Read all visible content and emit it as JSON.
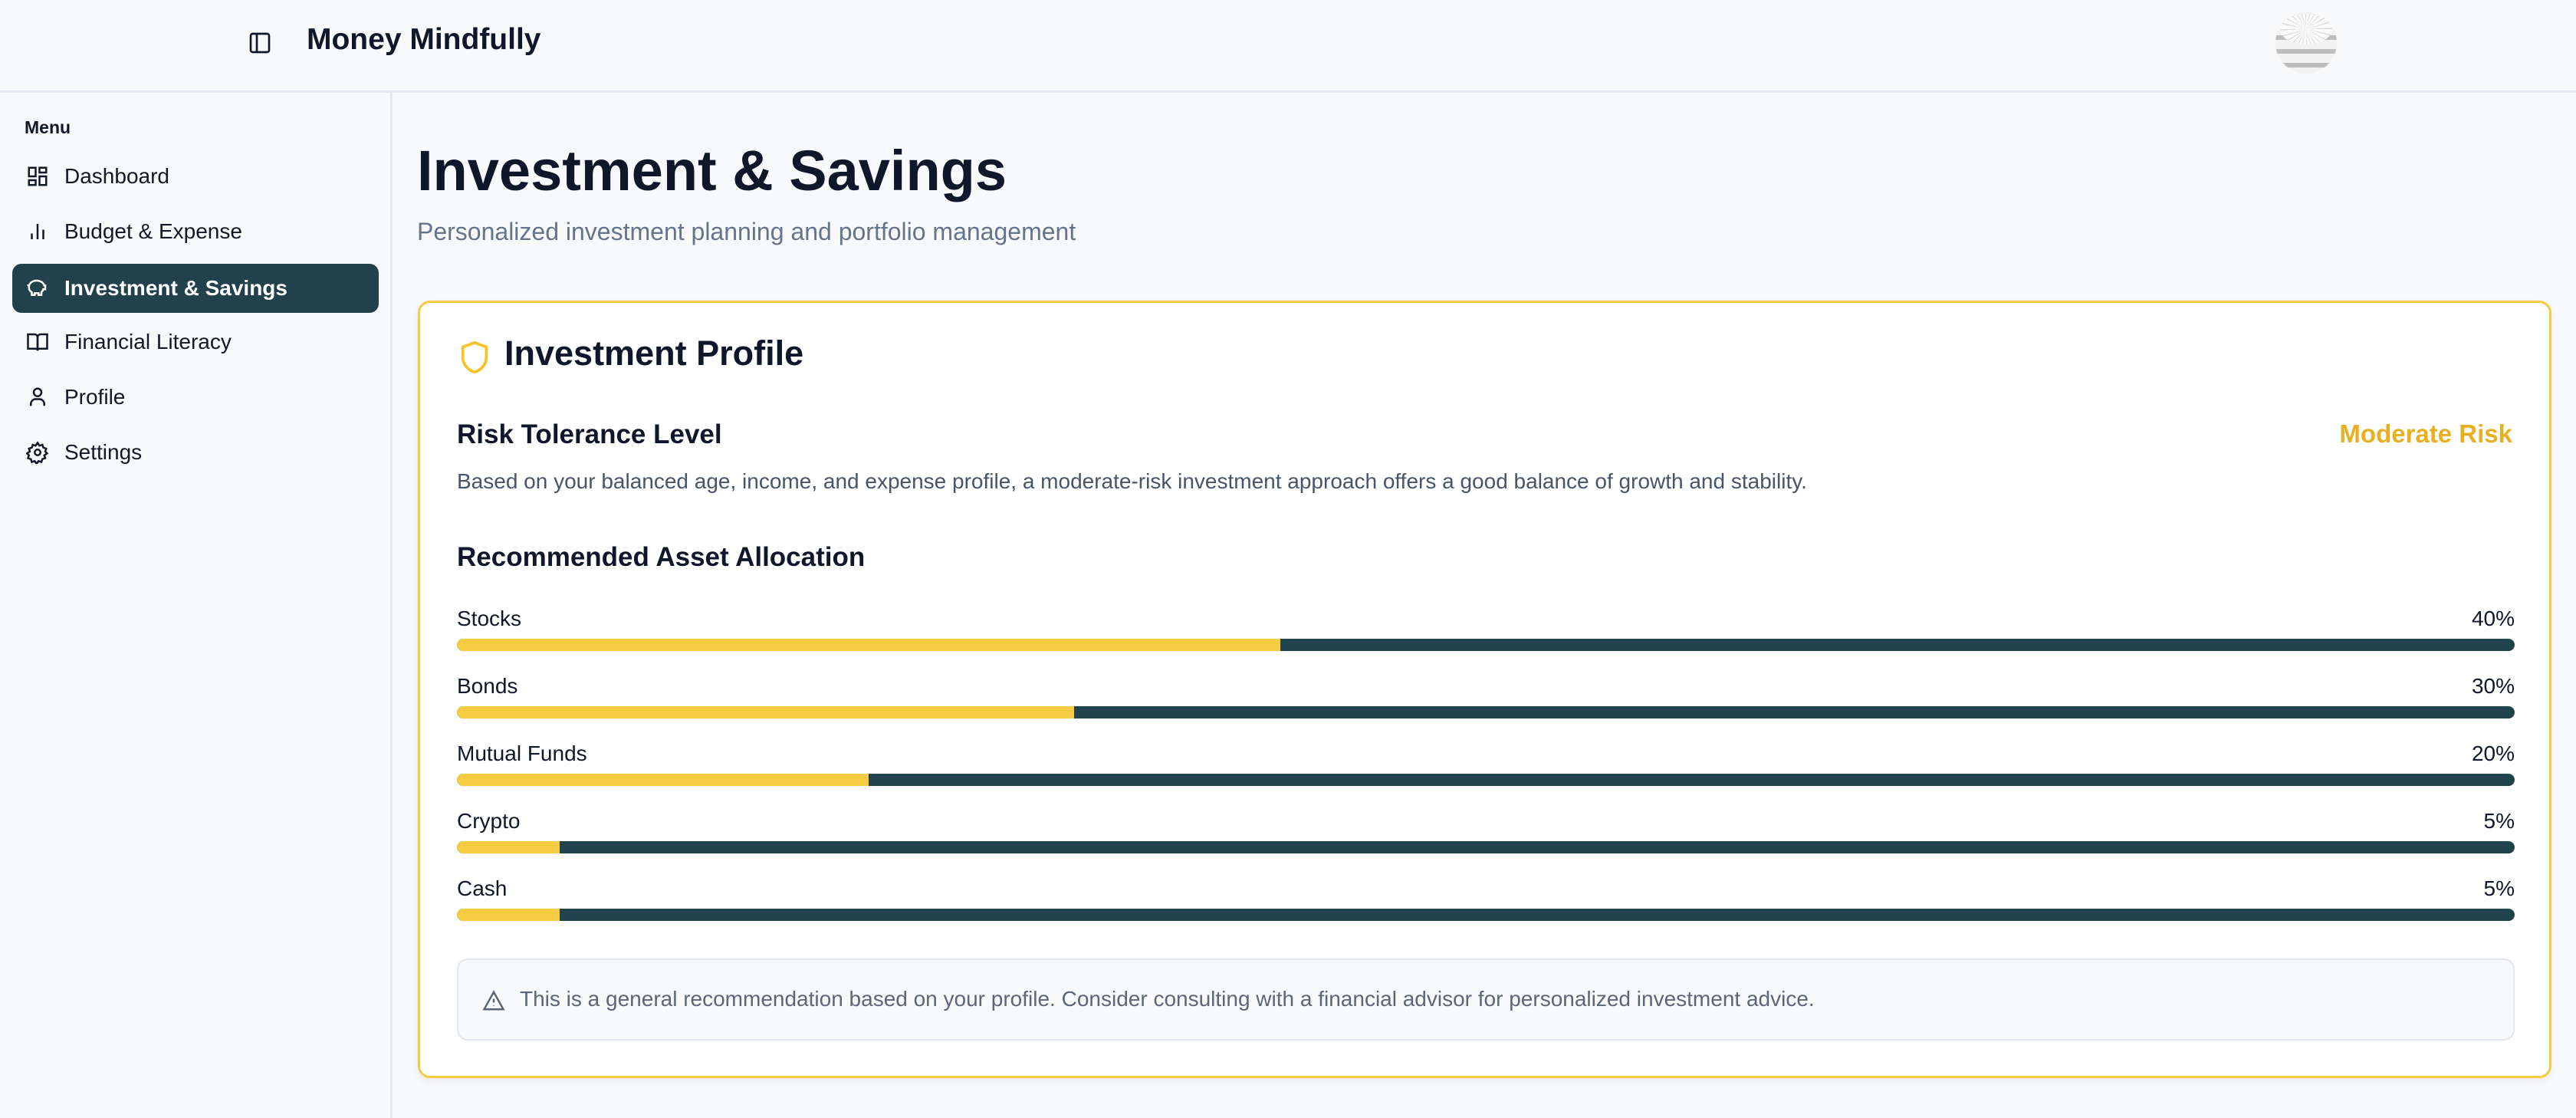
{
  "header": {
    "title": "Money Mindfully",
    "toggle_icon": "panel-left-icon",
    "avatar": "user-avatar"
  },
  "sidebar": {
    "menu_label": "Menu",
    "items": [
      {
        "label": "Dashboard",
        "icon": "dashboard-icon"
      },
      {
        "label": "Budget & Expense",
        "icon": "bar-chart-icon"
      },
      {
        "label": "Investment & Savings",
        "icon": "piggy-bank-icon",
        "active": true
      },
      {
        "label": "Financial Literacy",
        "icon": "book-icon"
      },
      {
        "label": "Profile",
        "icon": "user-icon"
      },
      {
        "label": "Settings",
        "icon": "gear-icon"
      }
    ]
  },
  "main": {
    "title": "Investment & Savings",
    "subtitle": "Personalized investment planning and portfolio management",
    "card": {
      "title": "Investment Profile",
      "risk_heading": "Risk Tolerance Level",
      "risk_value": "Moderate Risk",
      "risk_description": "Based on your balanced age, income, and expense profile, a moderate-risk investment approach offers a good balance of growth and stability.",
      "allocation_heading": "Recommended Asset Allocation",
      "allocations": [
        {
          "label": "Stocks",
          "percent": 40,
          "display": "40%"
        },
        {
          "label": "Bonds",
          "percent": 30,
          "display": "30%"
        },
        {
          "label": "Mutual Funds",
          "percent": 20,
          "display": "20%"
        },
        {
          "label": "Crypto",
          "percent": 5,
          "display": "5%"
        },
        {
          "label": "Cash",
          "percent": 5,
          "display": "5%"
        }
      ],
      "note": "This is a general recommendation based on your profile. Consider consulting with a financial advisor for personalized investment advice."
    }
  },
  "colors": {
    "accent": "#f6cc44",
    "primary": "#21414d",
    "risk": "#e8b020"
  }
}
